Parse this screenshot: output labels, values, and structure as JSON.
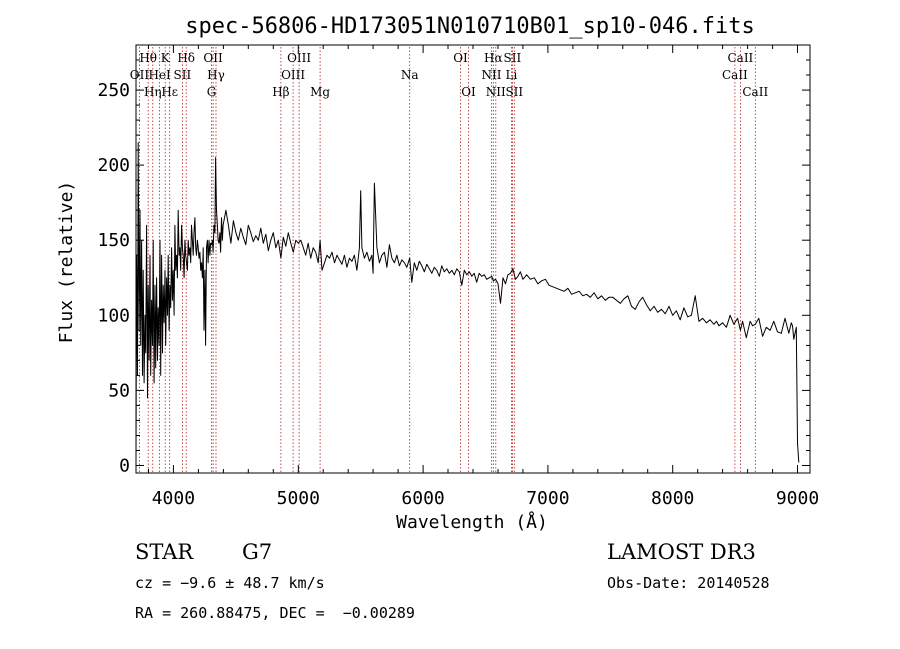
{
  "chart_data": {
    "type": "line",
    "title": "spec-56806-HD173051N010710B01_sp10-046.fits",
    "xlabel": "Wavelength (Å)",
    "ylabel": "Flux (relative)",
    "xlim": [
      3700,
      9100
    ],
    "ylim": [
      -5,
      280
    ],
    "xticks": [
      4000,
      5000,
      6000,
      7000,
      8000,
      9000
    ],
    "yticks": [
      0,
      50,
      100,
      150,
      200,
      250
    ],
    "grid": false,
    "series": [
      {
        "name": "spectrum",
        "x": [
          3700,
          3705,
          3712,
          3718,
          3725,
          3732,
          3738,
          3745,
          3752,
          3758,
          3765,
          3772,
          3778,
          3785,
          3792,
          3798,
          3805,
          3812,
          3818,
          3825,
          3832,
          3838,
          3845,
          3852,
          3858,
          3865,
          3872,
          3878,
          3885,
          3892,
          3898,
          3905,
          3912,
          3918,
          3925,
          3932,
          3938,
          3945,
          3952,
          3958,
          3965,
          3972,
          3978,
          3985,
          3992,
          3998,
          4005,
          4012,
          4018,
          4025,
          4032,
          4038,
          4045,
          4052,
          4058,
          4065,
          4072,
          4078,
          4085,
          4092,
          4098,
          4105,
          4112,
          4118,
          4125,
          4132,
          4138,
          4145,
          4152,
          4158,
          4165,
          4172,
          4178,
          4185,
          4192,
          4198,
          4205,
          4212,
          4218,
          4225,
          4232,
          4238,
          4245,
          4252,
          4258,
          4265,
          4272,
          4278,
          4285,
          4292,
          4298,
          4305,
          4312,
          4318,
          4325,
          4332,
          4338,
          4345,
          4352,
          4358,
          4365,
          4372,
          4378,
          4385,
          4392,
          4398,
          4420,
          4440,
          4460,
          4480,
          4500,
          4520,
          4540,
          4560,
          4580,
          4600,
          4620,
          4640,
          4660,
          4680,
          4700,
          4720,
          4740,
          4760,
          4780,
          4800,
          4820,
          4840,
          4861,
          4880,
          4900,
          4920,
          4940,
          4960,
          4980,
          5000,
          5020,
          5040,
          5060,
          5080,
          5100,
          5120,
          5140,
          5160,
          5175,
          5190,
          5210,
          5230,
          5250,
          5270,
          5290,
          5310,
          5330,
          5350,
          5370,
          5390,
          5410,
          5430,
          5450,
          5470,
          5490,
          5500,
          5510,
          5530,
          5550,
          5570,
          5590,
          5600,
          5610,
          5630,
          5650,
          5670,
          5690,
          5710,
          5730,
          5750,
          5770,
          5790,
          5810,
          5830,
          5850,
          5870,
          5893,
          5910,
          5930,
          5950,
          5970,
          5990,
          6010,
          6030,
          6050,
          6070,
          6090,
          6110,
          6130,
          6150,
          6170,
          6190,
          6210,
          6230,
          6250,
          6270,
          6290,
          6310,
          6330,
          6350,
          6370,
          6390,
          6410,
          6430,
          6450,
          6470,
          6490,
          6510,
          6530,
          6550,
          6563,
          6580,
          6600,
          6620,
          6640,
          6660,
          6680,
          6700,
          6720,
          6740,
          6760,
          6780,
          6800,
          6830,
          6860,
          6890,
          6920,
          6950,
          6980,
          7010,
          7040,
          7070,
          7100,
          7130,
          7160,
          7190,
          7220,
          7250,
          7280,
          7310,
          7340,
          7370,
          7400,
          7430,
          7460,
          7490,
          7520,
          7550,
          7580,
          7610,
          7640,
          7670,
          7700,
          7730,
          7760,
          7790,
          7820,
          7850,
          7880,
          7910,
          7940,
          7970,
          8000,
          8030,
          8060,
          8090,
          8120,
          8150,
          8180,
          8210,
          8240,
          8270,
          8300,
          8330,
          8350,
          8370,
          8400,
          8430,
          8460,
          8490,
          8520,
          8542,
          8560,
          8590,
          8620,
          8640,
          8662,
          8690,
          8720,
          8750,
          8780,
          8810,
          8840,
          8870,
          8900,
          8930,
          8950,
          8960,
          8970,
          8980,
          8990,
          9000,
          9010
        ],
        "y": [
          5,
          140,
          60,
          215,
          90,
          170,
          80,
          150,
          60,
          130,
          55,
          100,
          75,
          160,
          45,
          120,
          70,
          140,
          60,
          110,
          80,
          150,
          55,
          120,
          65,
          125,
          70,
          105,
          80,
          150,
          60,
          140,
          75,
          120,
          95,
          130,
          80,
          125,
          100,
          140,
          90,
          120,
          105,
          145,
          110,
          130,
          100,
          160,
          130,
          140,
          125,
          170,
          140,
          145,
          130,
          160,
          145,
          140,
          125,
          150,
          140,
          135,
          130,
          150,
          140,
          145,
          135,
          160,
          150,
          140,
          155,
          165,
          145,
          140,
          150,
          145,
          138,
          142,
          130,
          135,
          125,
          145,
          90,
          130,
          80,
          145,
          150,
          135,
          150,
          140,
          148,
          147,
          150,
          142,
          160,
          155,
          205,
          170,
          160,
          150,
          148,
          155,
          142,
          165,
          150,
          160,
          170,
          160,
          148,
          163,
          155,
          150,
          158,
          152,
          147,
          160,
          155,
          149,
          153,
          150,
          158,
          148,
          154,
          143,
          150,
          155,
          145,
          150,
          138,
          152,
          146,
          155,
          148,
          142,
          150,
          148,
          150,
          145,
          140,
          148,
          138,
          145,
          142,
          135,
          150,
          130,
          135,
          140,
          138,
          142,
          135,
          140,
          137,
          134,
          140,
          132,
          138,
          136,
          140,
          130,
          145,
          183,
          145,
          138,
          142,
          136,
          140,
          128,
          188,
          145,
          135,
          140,
          142,
          132,
          147,
          138,
          135,
          140,
          133,
          137,
          135,
          132,
          138,
          122,
          135,
          130,
          136,
          133,
          129,
          134,
          131,
          128,
          132,
          130,
          126,
          133,
          129,
          131,
          128,
          130,
          127,
          131,
          129,
          120,
          130,
          127,
          129,
          126,
          128,
          122,
          128,
          126,
          127,
          124,
          125,
          126,
          123,
          124,
          121,
          108,
          125,
          121,
          127,
          128,
          131,
          124,
          126,
          129,
          124,
          127,
          124,
          125,
          121,
          123,
          124,
          120,
          119,
          118,
          117,
          116,
          118,
          114,
          115,
          116,
          113,
          114,
          112,
          115,
          111,
          113,
          110,
          112,
          112,
          110,
          108,
          111,
          113,
          106,
          104,
          109,
          112,
          107,
          103,
          106,
          102,
          104,
          101,
          106,
          100,
          103,
          97,
          105,
          99,
          100,
          113,
          96,
          98,
          95,
          97,
          94,
          96,
          93,
          95,
          92,
          100,
          94,
          98,
          90,
          96,
          85,
          96,
          93,
          94,
          98,
          86,
          92,
          90,
          96,
          89,
          88,
          98,
          88,
          95,
          93,
          84,
          88,
          92,
          15,
          2
        ]
      }
    ],
    "annotations": [
      {
        "text": "Hθ",
        "x": 3798,
        "row": 1
      },
      {
        "text": "OII",
        "x": 3727,
        "row": 2
      },
      {
        "text": "Hη",
        "x": 3835,
        "row": 3
      },
      {
        "text": "K",
        "x": 3934,
        "row": 1
      },
      {
        "text": "HeI",
        "x": 3889,
        "row": 2
      },
      {
        "text": "Hε",
        "x": 3970,
        "row": 3
      },
      {
        "text": "SII",
        "x": 4072,
        "row": 2
      },
      {
        "text": "Hδ",
        "x": 4102,
        "row": 1
      },
      {
        "text": "OII",
        "x": 4318,
        "row": 1
      },
      {
        "text": "Hγ",
        "x": 4341,
        "row": 2
      },
      {
        "text": "G",
        "x": 4305,
        "row": 3
      },
      {
        "text": "Hβ",
        "x": 4861,
        "row": 3
      },
      {
        "text": "OIII",
        "x": 5007,
        "row": 1
      },
      {
        "text": "OIII",
        "x": 4959,
        "row": 2
      },
      {
        "text": "Mg",
        "x": 5175,
        "row": 3
      },
      {
        "text": "Na",
        "x": 5893,
        "row": 2
      },
      {
        "text": "OI",
        "x": 6300,
        "row": 1
      },
      {
        "text": "OI",
        "x": 6364,
        "row": 3
      },
      {
        "text": "Hα",
        "x": 6563,
        "row": 1
      },
      {
        "text": "NII",
        "x": 6548,
        "row": 2
      },
      {
        "text": "NII",
        "x": 6583,
        "row": 3
      },
      {
        "text": "SII",
        "x": 6716,
        "row": 1
      },
      {
        "text": "Li",
        "x": 6708,
        "row": 2
      },
      {
        "text": "SII",
        "x": 6731,
        "row": 3
      },
      {
        "text": "CaII",
        "x": 8542,
        "row": 1
      },
      {
        "text": "CaII",
        "x": 8498,
        "row": 2
      },
      {
        "text": "CaII",
        "x": 8662,
        "row": 3
      }
    ]
  },
  "info": {
    "obj_type": "STAR",
    "subclass": "G7",
    "survey": "LAMOST DR3",
    "cz": "cz = −9.6 ± 48.7 km/s",
    "obs_date": "Obs-Date: 20140528",
    "coords": "RA = 260.88475, DEC =  −0.00289"
  }
}
